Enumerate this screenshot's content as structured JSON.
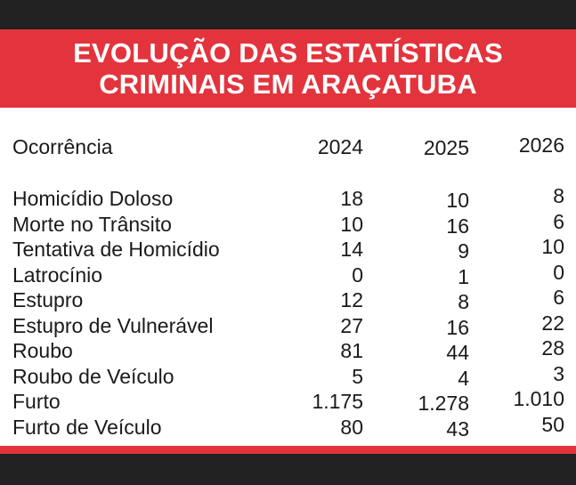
{
  "chart_data": {
    "type": "table",
    "title": "EVOLUÇÃO DAS ESTATÍSTICAS CRIMINAIS EM ARAÇATUBA",
    "columns": [
      "Ocorrência",
      "2024",
      "2025",
      "2026"
    ],
    "rows": [
      {
        "label": "Homicídio Doloso",
        "values": [
          "18",
          "10",
          "8"
        ]
      },
      {
        "label": "Morte no Trânsito",
        "values": [
          "10",
          "16",
          "6"
        ]
      },
      {
        "label": "Tentativa de Homicídio",
        "values": [
          "14",
          "9",
          "10"
        ]
      },
      {
        "label": "Latrocínio",
        "values": [
          "0",
          "1",
          "0"
        ]
      },
      {
        "label": "Estupro",
        "values": [
          "12",
          "8",
          "6"
        ]
      },
      {
        "label": "Estupro de Vulnerável",
        "values": [
          "27",
          "16",
          "22"
        ]
      },
      {
        "label": "Roubo",
        "values": [
          "81",
          "44",
          "28"
        ]
      },
      {
        "label": "Roubo de Veículo",
        "values": [
          "5",
          "4",
          "3"
        ]
      },
      {
        "label": "Furto",
        "values": [
          "1.175",
          "1.278",
          "1.010"
        ]
      },
      {
        "label": "Furto de Veículo",
        "values": [
          "80",
          "43",
          "50"
        ]
      }
    ]
  },
  "colors": {
    "accent": "#e3343d",
    "frame": "#212121",
    "panel": "#ffffff",
    "text": "#1a1a1a"
  }
}
